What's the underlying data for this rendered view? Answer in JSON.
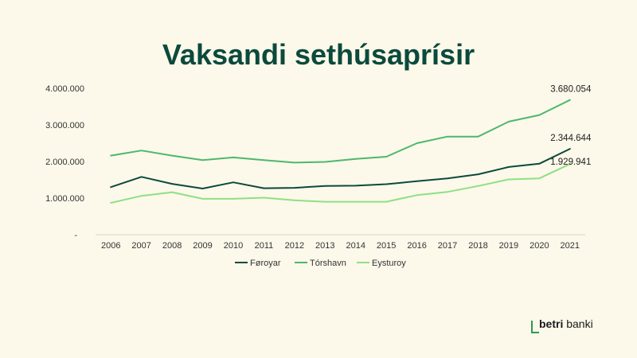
{
  "chart_data": {
    "type": "line",
    "title": "Vaksandi sethúsaprísir",
    "x": [
      "2006",
      "2007",
      "2008",
      "2009",
      "2010",
      "2011",
      "2012",
      "2013",
      "2014",
      "2015",
      "2016",
      "2017",
      "2018",
      "2019",
      "2020",
      "2021"
    ],
    "y_ticks": [
      "-",
      "1.000.000",
      "2.000.000",
      "3.000.000",
      "4.000.000"
    ],
    "ylim": [
      0,
      4000000
    ],
    "grid": false,
    "legend_position": "bottom",
    "series": [
      {
        "name": "Føroyar",
        "color": "#0b4a3c",
        "values": [
          1300000,
          1580000,
          1390000,
          1260000,
          1430000,
          1270000,
          1280000,
          1330000,
          1340000,
          1380000,
          1460000,
          1540000,
          1650000,
          1850000,
          1940000,
          2344644
        ],
        "end_label": "2.344.644"
      },
      {
        "name": "Tórshavn",
        "color": "#4cb86c",
        "values": [
          2160000,
          2300000,
          2160000,
          2040000,
          2110000,
          2040000,
          1970000,
          1990000,
          2070000,
          2130000,
          2500000,
          2680000,
          2680000,
          3090000,
          3270000,
          3680054
        ],
        "end_label": "3.680.054"
      },
      {
        "name": "Eysturoy",
        "color": "#8ee085",
        "values": [
          870000,
          1060000,
          1160000,
          980000,
          980000,
          1010000,
          940000,
          900000,
          900000,
          900000,
          1080000,
          1170000,
          1330000,
          1510000,
          1540000,
          1929941
        ],
        "end_label": "1.929.941"
      }
    ]
  },
  "brand": {
    "bold": "betri",
    "rest": "banki"
  }
}
